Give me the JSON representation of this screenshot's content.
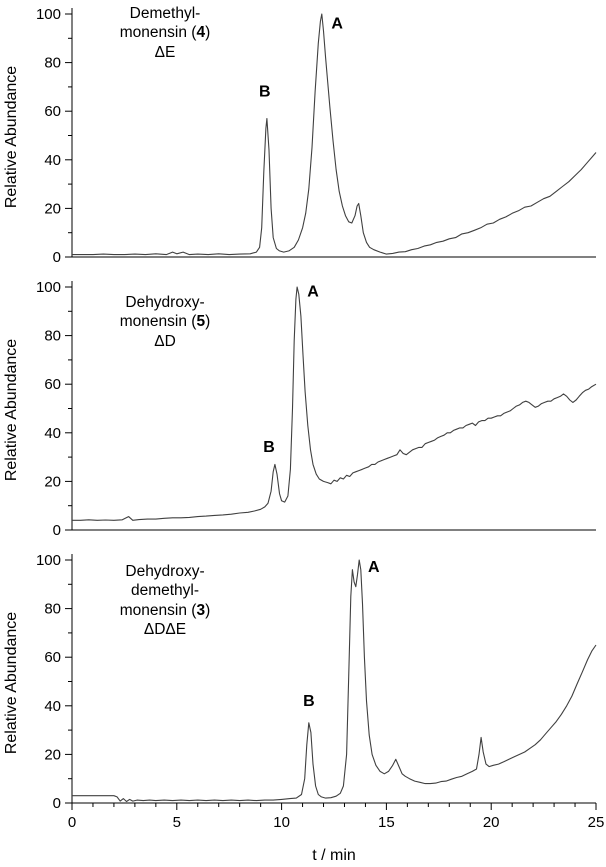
{
  "figure": {
    "xlabel": "t / min",
    "ylabel": "Relative Abundance"
  },
  "chart_data": [
    {
      "type": "line",
      "title_lines": [
        "Demethyl-",
        "monensin (4)",
        "ΔE"
      ],
      "xlabel": "t / min",
      "ylabel": "Relative Abundance",
      "xlim": [
        0,
        25
      ],
      "ylim": [
        0,
        100
      ],
      "x_major_ticks": [
        0,
        5,
        10,
        15,
        20,
        25
      ],
      "y_major_ticks": [
        0,
        20,
        40,
        60,
        80,
        100
      ],
      "grid": false,
      "line_color": "#404040",
      "annotations": [
        {
          "label": "B",
          "x": 9.2,
          "y": 66
        },
        {
          "label": "A",
          "x": 12.65,
          "y": 94
        }
      ],
      "points": [
        [
          0,
          1
        ],
        [
          0.5,
          1
        ],
        [
          1,
          1
        ],
        [
          1.5,
          1.2
        ],
        [
          2,
          1
        ],
        [
          2.5,
          1
        ],
        [
          3,
          1.2
        ],
        [
          3.5,
          1
        ],
        [
          4,
          1.3
        ],
        [
          4.5,
          1
        ],
        [
          4.8,
          2
        ],
        [
          5,
          1.3
        ],
        [
          5.3,
          2
        ],
        [
          5.6,
          1
        ],
        [
          6,
          1.2
        ],
        [
          6.5,
          1
        ],
        [
          7,
          1.3
        ],
        [
          7.5,
          1
        ],
        [
          8,
          1.2
        ],
        [
          8.5,
          1.3
        ],
        [
          8.8,
          2
        ],
        [
          8.95,
          4
        ],
        [
          9.05,
          12
        ],
        [
          9.15,
          35
        ],
        [
          9.25,
          53
        ],
        [
          9.3,
          57
        ],
        [
          9.4,
          44
        ],
        [
          9.5,
          20
        ],
        [
          9.6,
          8
        ],
        [
          9.75,
          3.5
        ],
        [
          9.9,
          2.5
        ],
        [
          10.1,
          2
        ],
        [
          10.35,
          2.5
        ],
        [
          10.6,
          4
        ],
        [
          10.8,
          7
        ],
        [
          11,
          12
        ],
        [
          11.15,
          18
        ],
        [
          11.3,
          28
        ],
        [
          11.45,
          45
        ],
        [
          11.6,
          68
        ],
        [
          11.75,
          88
        ],
        [
          11.85,
          97
        ],
        [
          11.92,
          100
        ],
        [
          12,
          93
        ],
        [
          12.1,
          82
        ],
        [
          12.2,
          72
        ],
        [
          12.3,
          62
        ],
        [
          12.45,
          48
        ],
        [
          12.6,
          36
        ],
        [
          12.75,
          27
        ],
        [
          12.9,
          21
        ],
        [
          13.05,
          17
        ],
        [
          13.2,
          14.5
        ],
        [
          13.35,
          14
        ],
        [
          13.5,
          17
        ],
        [
          13.6,
          21
        ],
        [
          13.68,
          22
        ],
        [
          13.78,
          17
        ],
        [
          13.9,
          10
        ],
        [
          14.05,
          6
        ],
        [
          14.2,
          4
        ],
        [
          14.4,
          3
        ],
        [
          14.7,
          2
        ],
        [
          15,
          1.2
        ],
        [
          15.3,
          1.5
        ],
        [
          15.6,
          2
        ],
        [
          15.9,
          2.2
        ],
        [
          16.2,
          3
        ],
        [
          16.5,
          3.5
        ],
        [
          16.8,
          4.5
        ],
        [
          17.1,
          5
        ],
        [
          17.4,
          6
        ],
        [
          17.7,
          6.5
        ],
        [
          18,
          7.5
        ],
        [
          18.3,
          8
        ],
        [
          18.6,
          9.5
        ],
        [
          18.9,
          10
        ],
        [
          19.2,
          11
        ],
        [
          19.5,
          12
        ],
        [
          19.8,
          13.5
        ],
        [
          20.1,
          14
        ],
        [
          20.4,
          15.5
        ],
        [
          20.7,
          16.5
        ],
        [
          21,
          18
        ],
        [
          21.3,
          19
        ],
        [
          21.6,
          20.5
        ],
        [
          21.9,
          21
        ],
        [
          22.2,
          22.5
        ],
        [
          22.5,
          24
        ],
        [
          22.8,
          25
        ],
        [
          23.1,
          27
        ],
        [
          23.4,
          29
        ],
        [
          23.7,
          31
        ],
        [
          24,
          33.5
        ],
        [
          24.3,
          36
        ],
        [
          24.6,
          39
        ],
        [
          24.8,
          41
        ],
        [
          25,
          43
        ]
      ]
    },
    {
      "type": "line",
      "title_lines": [
        "Dehydroxy-",
        "monensin (5)",
        "ΔD"
      ],
      "xlabel": "t / min",
      "ylabel": "Relative Abundance",
      "xlim": [
        0,
        25
      ],
      "ylim": [
        0,
        100
      ],
      "x_major_ticks": [
        0,
        5,
        10,
        15,
        20,
        25
      ],
      "y_major_ticks": [
        0,
        20,
        40,
        60,
        80,
        100
      ],
      "grid": false,
      "line_color": "#404040",
      "annotations": [
        {
          "label": "B",
          "x": 9.4,
          "y": 32
        },
        {
          "label": "A",
          "x": 11.5,
          "y": 96
        }
      ],
      "points": [
        [
          0,
          4
        ],
        [
          0.4,
          4
        ],
        [
          0.8,
          4.2
        ],
        [
          1.2,
          4
        ],
        [
          1.6,
          4.1
        ],
        [
          2,
          4
        ],
        [
          2.4,
          4.2
        ],
        [
          2.7,
          5.5
        ],
        [
          2.9,
          4
        ],
        [
          3.2,
          4.3
        ],
        [
          3.6,
          4.5
        ],
        [
          4,
          4.5
        ],
        [
          4.4,
          4.8
        ],
        [
          4.8,
          5
        ],
        [
          5.2,
          5
        ],
        [
          5.6,
          5.2
        ],
        [
          6,
          5.5
        ],
        [
          6.4,
          5.7
        ],
        [
          6.8,
          6
        ],
        [
          7.2,
          6.2
        ],
        [
          7.6,
          6.5
        ],
        [
          8,
          7
        ],
        [
          8.4,
          7.3
        ],
        [
          8.7,
          7.8
        ],
        [
          9,
          8.5
        ],
        [
          9.2,
          9.5
        ],
        [
          9.35,
          11
        ],
        [
          9.5,
          16
        ],
        [
          9.6,
          24
        ],
        [
          9.68,
          27
        ],
        [
          9.78,
          23
        ],
        [
          9.9,
          15
        ],
        [
          10,
          12
        ],
        [
          10.15,
          11.5
        ],
        [
          10.3,
          14
        ],
        [
          10.42,
          25
        ],
        [
          10.52,
          50
        ],
        [
          10.6,
          78
        ],
        [
          10.68,
          95
        ],
        [
          10.74,
          100
        ],
        [
          10.82,
          97
        ],
        [
          10.92,
          88
        ],
        [
          11.02,
          72
        ],
        [
          11.12,
          57
        ],
        [
          11.25,
          43
        ],
        [
          11.38,
          33
        ],
        [
          11.5,
          27
        ],
        [
          11.65,
          23
        ],
        [
          11.8,
          21
        ],
        [
          12,
          20
        ],
        [
          12.2,
          19.5
        ],
        [
          12.35,
          19
        ],
        [
          12.5,
          20.5
        ],
        [
          12.65,
          20
        ],
        [
          12.8,
          21.5
        ],
        [
          12.95,
          21
        ],
        [
          13.1,
          22.5
        ],
        [
          13.25,
          22
        ],
        [
          13.4,
          23.5
        ],
        [
          13.55,
          24
        ],
        [
          13.7,
          24.5
        ],
        [
          13.85,
          25
        ],
        [
          14,
          25.5
        ],
        [
          14.15,
          26
        ],
        [
          14.3,
          27
        ],
        [
          14.45,
          27
        ],
        [
          14.6,
          28
        ],
        [
          14.75,
          28.5
        ],
        [
          14.9,
          29
        ],
        [
          15.05,
          29.5
        ],
        [
          15.2,
          30
        ],
        [
          15.35,
          30.5
        ],
        [
          15.5,
          31
        ],
        [
          15.65,
          33
        ],
        [
          15.8,
          31.5
        ],
        [
          15.95,
          31
        ],
        [
          16.1,
          32
        ],
        [
          16.25,
          33
        ],
        [
          16.4,
          33.5
        ],
        [
          16.55,
          34
        ],
        [
          16.7,
          34
        ],
        [
          16.85,
          35.5
        ],
        [
          17,
          36
        ],
        [
          17.15,
          36.5
        ],
        [
          17.3,
          37
        ],
        [
          17.45,
          38
        ],
        [
          17.6,
          38.5
        ],
        [
          17.75,
          39
        ],
        [
          17.9,
          40
        ],
        [
          18.05,
          40
        ],
        [
          18.2,
          41
        ],
        [
          18.35,
          41.5
        ],
        [
          18.5,
          42
        ],
        [
          18.65,
          42
        ],
        [
          18.8,
          43
        ],
        [
          18.95,
          43.5
        ],
        [
          19.1,
          44
        ],
        [
          19.25,
          43
        ],
        [
          19.4,
          44.5
        ],
        [
          19.55,
          45
        ],
        [
          19.7,
          45
        ],
        [
          19.85,
          46
        ],
        [
          20,
          46
        ],
        [
          20.15,
          46.5
        ],
        [
          20.3,
          47
        ],
        [
          20.45,
          47
        ],
        [
          20.6,
          48
        ],
        [
          20.75,
          48.5
        ],
        [
          20.9,
          49
        ],
        [
          21.05,
          50
        ],
        [
          21.2,
          51
        ],
        [
          21.35,
          51.5
        ],
        [
          21.5,
          52.5
        ],
        [
          21.65,
          53
        ],
        [
          21.8,
          52.5
        ],
        [
          21.95,
          51.5
        ],
        [
          22.1,
          50.5
        ],
        [
          22.25,
          51
        ],
        [
          22.4,
          52
        ],
        [
          22.55,
          52.5
        ],
        [
          22.7,
          53
        ],
        [
          22.85,
          53
        ],
        [
          23,
          54
        ],
        [
          23.15,
          54.5
        ],
        [
          23.3,
          55
        ],
        [
          23.45,
          56
        ],
        [
          23.6,
          55
        ],
        [
          23.75,
          53.5
        ],
        [
          23.9,
          52.5
        ],
        [
          24.05,
          53.5
        ],
        [
          24.2,
          55
        ],
        [
          24.35,
          56.5
        ],
        [
          24.5,
          57.5
        ],
        [
          24.65,
          58
        ],
        [
          24.8,
          59
        ],
        [
          25,
          60
        ]
      ]
    },
    {
      "type": "line",
      "title_lines": [
        "Dehydroxy-",
        "demethyl-",
        "monensin (3)",
        "ΔDΔE"
      ],
      "xlabel": "t / min",
      "ylabel": "Relative Abundance",
      "xlim": [
        0,
        25
      ],
      "ylim": [
        0,
        100
      ],
      "x_major_ticks": [
        0,
        5,
        10,
        15,
        20,
        25
      ],
      "y_major_ticks": [
        0,
        20,
        40,
        60,
        80,
        100
      ],
      "grid": false,
      "line_color": "#404040",
      "annotations": [
        {
          "label": "B",
          "x": 11.3,
          "y": 40
        },
        {
          "label": "A",
          "x": 14.4,
          "y": 95
        }
      ],
      "points": [
        [
          0,
          3
        ],
        [
          0.5,
          3
        ],
        [
          1,
          3
        ],
        [
          1.5,
          3
        ],
        [
          2,
          3
        ],
        [
          2.15,
          2.5
        ],
        [
          2.3,
          0.8
        ],
        [
          2.45,
          1.8
        ],
        [
          2.6,
          0.6
        ],
        [
          2.75,
          1.5
        ],
        [
          2.9,
          0.8
        ],
        [
          3.1,
          1.2
        ],
        [
          3.4,
          1
        ],
        [
          3.7,
          1.2
        ],
        [
          4,
          1
        ],
        [
          4.4,
          1.2
        ],
        [
          4.8,
          1
        ],
        [
          5.2,
          1.2
        ],
        [
          5.6,
          1
        ],
        [
          6,
          1.2
        ],
        [
          6.4,
          1
        ],
        [
          6.8,
          1.2
        ],
        [
          7.2,
          1
        ],
        [
          7.6,
          1.2
        ],
        [
          8,
          1
        ],
        [
          8.4,
          1.2
        ],
        [
          8.8,
          1
        ],
        [
          9.2,
          1.2
        ],
        [
          9.6,
          1.2
        ],
        [
          10,
          1.5
        ],
        [
          10.4,
          1.8
        ],
        [
          10.7,
          2
        ],
        [
          10.95,
          3.5
        ],
        [
          11.1,
          10
        ],
        [
          11.2,
          24
        ],
        [
          11.3,
          33
        ],
        [
          11.4,
          29
        ],
        [
          11.5,
          16
        ],
        [
          11.62,
          7
        ],
        [
          11.75,
          3.5
        ],
        [
          11.9,
          2.5
        ],
        [
          12.1,
          2
        ],
        [
          12.35,
          2.2
        ],
        [
          12.6,
          2.8
        ],
        [
          12.8,
          4
        ],
        [
          12.95,
          7
        ],
        [
          13.1,
          20
        ],
        [
          13.2,
          52
        ],
        [
          13.3,
          85
        ],
        [
          13.38,
          96
        ],
        [
          13.46,
          91
        ],
        [
          13.54,
          89
        ],
        [
          13.62,
          94
        ],
        [
          13.7,
          100
        ],
        [
          13.78,
          96
        ],
        [
          13.86,
          82
        ],
        [
          13.95,
          60
        ],
        [
          14.05,
          42
        ],
        [
          14.18,
          28
        ],
        [
          14.32,
          20
        ],
        [
          14.5,
          15.5
        ],
        [
          14.7,
          13
        ],
        [
          14.9,
          12
        ],
        [
          15.1,
          13
        ],
        [
          15.3,
          15.5
        ],
        [
          15.45,
          18
        ],
        [
          15.6,
          15
        ],
        [
          15.75,
          12
        ],
        [
          15.9,
          11
        ],
        [
          16.1,
          10
        ],
        [
          16.35,
          9
        ],
        [
          16.6,
          8.5
        ],
        [
          16.85,
          8
        ],
        [
          17.1,
          8
        ],
        [
          17.35,
          8.2
        ],
        [
          17.6,
          8.8
        ],
        [
          17.85,
          9
        ],
        [
          18.1,
          9.8
        ],
        [
          18.35,
          10.5
        ],
        [
          18.6,
          11
        ],
        [
          18.85,
          12
        ],
        [
          19.1,
          13
        ],
        [
          19.3,
          14
        ],
        [
          19.42,
          20
        ],
        [
          19.52,
          27
        ],
        [
          19.62,
          21
        ],
        [
          19.75,
          16
        ],
        [
          19.9,
          15
        ],
        [
          20.1,
          15.5
        ],
        [
          20.35,
          16
        ],
        [
          20.6,
          17
        ],
        [
          20.85,
          18
        ],
        [
          21.1,
          19
        ],
        [
          21.35,
          20
        ],
        [
          21.6,
          21
        ],
        [
          21.85,
          22.5
        ],
        [
          22.1,
          24
        ],
        [
          22.35,
          26
        ],
        [
          22.6,
          28.5
        ],
        [
          22.85,
          31
        ],
        [
          23.1,
          33.5
        ],
        [
          23.35,
          36.5
        ],
        [
          23.6,
          40
        ],
        [
          23.85,
          44
        ],
        [
          24.1,
          49
        ],
        [
          24.35,
          54
        ],
        [
          24.6,
          59
        ],
        [
          24.8,
          62.5
        ],
        [
          25,
          65
        ]
      ]
    }
  ]
}
